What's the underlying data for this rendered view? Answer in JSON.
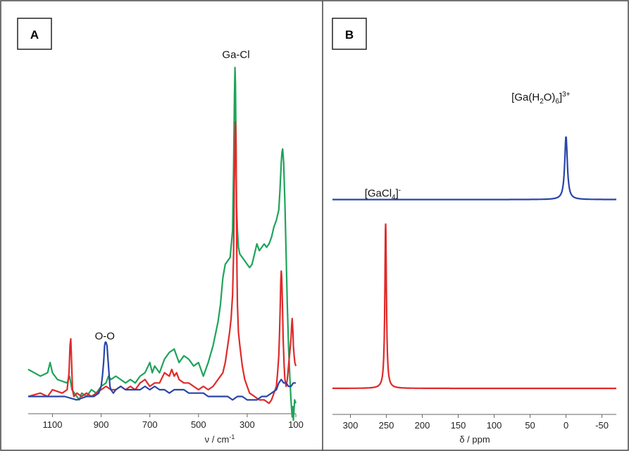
{
  "chart_data": [
    {
      "panel": "A",
      "type": "line",
      "xlabel": "ν / cm",
      "xlabel_sup": "-1",
      "xlim": [
        1200,
        100
      ],
      "ylim": [
        0,
        1
      ],
      "y_axis_visible": false,
      "x_ticks": [
        {
          "value": 1100,
          "label": "1100"
        },
        {
          "value": 900,
          "label": "900"
        },
        {
          "value": 700,
          "label": "700"
        },
        {
          "value": 500,
          "label": "500"
        },
        {
          "value": 300,
          "label": "300"
        },
        {
          "value": 100,
          "label": "100"
        }
      ],
      "annotations": [
        {
          "text": "Ga-Cl",
          "x": 346,
          "y": 1.02
        },
        {
          "text": "O-O",
          "x": 885,
          "y": 0.19
        }
      ],
      "series": [
        {
          "color": "#1fa35a",
          "x": [
            1200,
            1150,
            1120,
            1110,
            1100,
            1080,
            1040,
            1030,
            1025,
            1020,
            1000,
            990,
            980,
            960,
            940,
            920,
            900,
            880,
            870,
            860,
            840,
            820,
            800,
            780,
            760,
            740,
            720,
            700,
            690,
            680,
            670,
            660,
            640,
            620,
            600,
            590,
            580,
            560,
            540,
            520,
            500,
            480,
            460,
            440,
            420,
            410,
            400,
            390,
            380,
            370,
            360,
            356,
            352,
            350,
            348,
            346,
            344,
            340,
            336,
            330,
            320,
            310,
            300,
            290,
            280,
            270,
            260,
            250,
            240,
            230,
            220,
            210,
            200,
            190,
            180,
            170,
            165,
            160,
            157,
            154,
            150,
            145,
            140,
            135,
            130,
            125,
            120,
            115,
            112,
            110,
            105,
            100
          ],
          "y": [
            0.11,
            0.09,
            0.1,
            0.13,
            0.1,
            0.08,
            0.07,
            0.09,
            0.07,
            0.05,
            0.03,
            0.02,
            0.04,
            0.03,
            0.05,
            0.04,
            0.06,
            0.07,
            0.09,
            0.08,
            0.09,
            0.08,
            0.07,
            0.08,
            0.07,
            0.09,
            0.1,
            0.13,
            0.1,
            0.12,
            0.11,
            0.1,
            0.14,
            0.16,
            0.17,
            0.15,
            0.13,
            0.15,
            0.14,
            0.12,
            0.13,
            0.09,
            0.13,
            0.18,
            0.25,
            0.3,
            0.38,
            0.42,
            0.43,
            0.44,
            0.52,
            0.7,
            0.92,
            1.0,
            0.95,
            0.78,
            0.6,
            0.52,
            0.47,
            0.45,
            0.44,
            0.43,
            0.42,
            0.41,
            0.42,
            0.45,
            0.48,
            0.46,
            0.47,
            0.48,
            0.47,
            0.48,
            0.5,
            0.53,
            0.55,
            0.58,
            0.64,
            0.72,
            0.75,
            0.76,
            0.72,
            0.6,
            0.45,
            0.3,
            0.18,
            0.09,
            0.02,
            -0.03,
            0.0,
            -0.04,
            0.02,
            0.01
          ]
        },
        {
          "color": "#e02a2a",
          "x": [
            1200,
            1150,
            1120,
            1100,
            1060,
            1040,
            1032,
            1028,
            1025,
            1022,
            1018,
            1012,
            1000,
            980,
            960,
            940,
            920,
            900,
            880,
            860,
            840,
            820,
            800,
            780,
            760,
            740,
            720,
            700,
            680,
            660,
            640,
            620,
            610,
            600,
            590,
            580,
            560,
            540,
            520,
            500,
            480,
            460,
            440,
            420,
            400,
            390,
            380,
            372,
            366,
            360,
            356,
            353,
            350,
            348,
            346,
            344,
            342,
            340,
            336,
            330,
            320,
            310,
            300,
            290,
            270,
            250,
            230,
            210,
            200,
            190,
            180,
            175,
            170,
            167,
            164,
            162,
            160,
            158,
            155,
            152,
            148,
            145,
            140,
            135,
            130,
            125,
            120,
            117,
            115,
            112,
            110,
            107,
            104,
            100
          ],
          "y": [
            0.03,
            0.04,
            0.03,
            0.05,
            0.04,
            0.05,
            0.1,
            0.18,
            0.2,
            0.14,
            0.05,
            0.03,
            0.04,
            0.03,
            0.04,
            0.03,
            0.04,
            0.05,
            0.06,
            0.05,
            0.05,
            0.06,
            0.05,
            0.06,
            0.05,
            0.07,
            0.08,
            0.06,
            0.07,
            0.07,
            0.1,
            0.09,
            0.11,
            0.09,
            0.1,
            0.08,
            0.07,
            0.07,
            0.06,
            0.05,
            0.06,
            0.05,
            0.06,
            0.08,
            0.1,
            0.13,
            0.18,
            0.22,
            0.26,
            0.33,
            0.45,
            0.65,
            0.78,
            0.84,
            0.8,
            0.6,
            0.4,
            0.3,
            0.22,
            0.18,
            0.12,
            0.08,
            0.06,
            0.04,
            0.03,
            0.02,
            0.02,
            0.01,
            0.02,
            0.04,
            0.06,
            0.1,
            0.15,
            0.22,
            0.3,
            0.37,
            0.4,
            0.38,
            0.3,
            0.2,
            0.12,
            0.08,
            0.06,
            0.08,
            0.12,
            0.16,
            0.2,
            0.24,
            0.26,
            0.22,
            0.18,
            0.15,
            0.13,
            0.12
          ]
        },
        {
          "color": "#2a45a8",
          "x": [
            1200,
            1150,
            1100,
            1050,
            1000,
            960,
            930,
            910,
            900,
            895,
            890,
            886,
            883,
            880,
            876,
            872,
            868,
            864,
            860,
            850,
            840,
            820,
            800,
            780,
            760,
            740,
            720,
            700,
            680,
            660,
            640,
            620,
            600,
            580,
            560,
            540,
            520,
            500,
            480,
            460,
            440,
            420,
            400,
            380,
            360,
            340,
            320,
            300,
            280,
            260,
            240,
            220,
            200,
            180,
            170,
            160,
            150,
            140,
            130,
            120,
            110,
            100
          ],
          "y": [
            0.03,
            0.03,
            0.03,
            0.03,
            0.02,
            0.03,
            0.03,
            0.04,
            0.06,
            0.09,
            0.13,
            0.18,
            0.19,
            0.19,
            0.18,
            0.14,
            0.1,
            0.06,
            0.05,
            0.04,
            0.05,
            0.06,
            0.05,
            0.05,
            0.05,
            0.05,
            0.06,
            0.05,
            0.06,
            0.05,
            0.05,
            0.04,
            0.05,
            0.05,
            0.05,
            0.04,
            0.04,
            0.04,
            0.04,
            0.03,
            0.03,
            0.03,
            0.03,
            0.03,
            0.02,
            0.03,
            0.03,
            0.02,
            0.02,
            0.02,
            0.03,
            0.03,
            0.04,
            0.05,
            0.07,
            0.08,
            0.07,
            0.07,
            0.06,
            0.06,
            0.07,
            0.07
          ]
        }
      ]
    },
    {
      "panel": "B",
      "type": "line",
      "xlabel": "δ / ppm",
      "xlim": [
        325,
        -70
      ],
      "ylim": [
        0,
        1
      ],
      "y_axis_visible": false,
      "x_ticks": [
        {
          "value": 300,
          "label": "300"
        },
        {
          "value": 250,
          "label": "250"
        },
        {
          "value": 200,
          "label": "200"
        },
        {
          "value": 150,
          "label": "150"
        },
        {
          "value": 100,
          "label": "100"
        },
        {
          "value": 50,
          "label": "50"
        },
        {
          "value": 0,
          "label": "0"
        },
        {
          "value": -50,
          "label": "-50"
        }
      ],
      "annotations": [
        {
          "text": "[Ga(H",
          "sub": "2",
          "text2": "O)",
          "sub2": "6",
          "text3": "]",
          "sup": "3+",
          "x": 35,
          "y": 0.96
        },
        {
          "text": "[GaCl",
          "sub": "4",
          "text3": "]",
          "sup": "-",
          "x": 255,
          "y": 0.64
        }
      ],
      "series": [
        {
          "color": "#2a45a8",
          "baseline": 0.63,
          "peak_center": 0,
          "peak_height": 0.21,
          "peak_width": 2.2
        },
        {
          "color": "#e02a2a",
          "baseline": 0.0,
          "peak_center": 251,
          "peak_height": 0.55,
          "peak_width": 1.3
        }
      ]
    }
  ],
  "panels": {
    "a_label": "A",
    "b_label": "B"
  }
}
